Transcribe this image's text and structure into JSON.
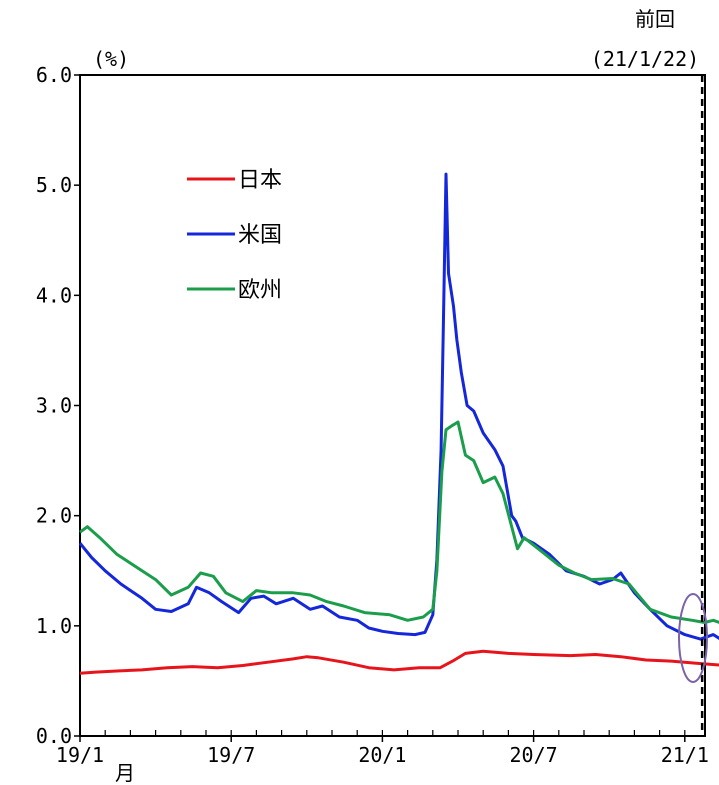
{
  "chart_data": {
    "type": "line",
    "yunit": "(%)",
    "ylim": [
      0,
      6
    ],
    "yticks": [
      "0.0",
      "1.0",
      "2.0",
      "3.0",
      "4.0",
      "5.0",
      "6.0"
    ],
    "xlim": [
      "2019-01",
      "2021-02"
    ],
    "xticks": [
      {
        "label": "19/1",
        "pos": "2019-01"
      },
      {
        "label": "19/7",
        "pos": "2019-07"
      },
      {
        "label": "20/1",
        "pos": "2020-01"
      },
      {
        "label": "20/7",
        "pos": "2020-07"
      },
      {
        "label": "21/1",
        "pos": "2021-01"
      }
    ],
    "xunit": "月",
    "marker": {
      "label_line1": "前回",
      "label_line2": "(21/1/22)",
      "date": "2021-01-22"
    },
    "grid": false,
    "legend_position": "top-left",
    "series": [
      {
        "name": "日本",
        "color": "#e8141b",
        "points": [
          [
            "2019-01-01",
            0.57
          ],
          [
            "2019-01-20",
            0.58
          ],
          [
            "2019-02-15",
            0.59
          ],
          [
            "2019-03-15",
            0.6
          ],
          [
            "2019-04-15",
            0.62
          ],
          [
            "2019-05-15",
            0.63
          ],
          [
            "2019-06-15",
            0.62
          ],
          [
            "2019-07-15",
            0.64
          ],
          [
            "2019-08-15",
            0.67
          ],
          [
            "2019-09-15",
            0.7
          ],
          [
            "2019-10-01",
            0.72
          ],
          [
            "2019-10-15",
            0.71
          ],
          [
            "2019-11-15",
            0.67
          ],
          [
            "2019-12-15",
            0.62
          ],
          [
            "2020-01-15",
            0.6
          ],
          [
            "2020-02-15",
            0.62
          ],
          [
            "2020-03-10",
            0.62
          ],
          [
            "2020-03-25",
            0.68
          ],
          [
            "2020-04-10",
            0.75
          ],
          [
            "2020-05-01",
            0.77
          ],
          [
            "2020-06-01",
            0.75
          ],
          [
            "2020-07-01",
            0.74
          ],
          [
            "2020-08-15",
            0.73
          ],
          [
            "2020-09-15",
            0.74
          ],
          [
            "2020-10-15",
            0.72
          ],
          [
            "2020-11-15",
            0.69
          ],
          [
            "2020-12-15",
            0.68
          ],
          [
            "2021-01-15",
            0.66
          ],
          [
            "2021-02-20",
            0.64
          ]
        ]
      },
      {
        "name": "米国",
        "color": "#1427d9",
        "points": [
          [
            "2019-01-01",
            1.75
          ],
          [
            "2019-01-15",
            1.62
          ],
          [
            "2019-02-01",
            1.5
          ],
          [
            "2019-02-20",
            1.38
          ],
          [
            "2019-03-15",
            1.25
          ],
          [
            "2019-04-01",
            1.15
          ],
          [
            "2019-04-20",
            1.13
          ],
          [
            "2019-05-10",
            1.2
          ],
          [
            "2019-05-20",
            1.35
          ],
          [
            "2019-06-05",
            1.3
          ],
          [
            "2019-06-20",
            1.22
          ],
          [
            "2019-07-10",
            1.12
          ],
          [
            "2019-07-25",
            1.25
          ],
          [
            "2019-08-10",
            1.27
          ],
          [
            "2019-08-25",
            1.2
          ],
          [
            "2019-09-15",
            1.25
          ],
          [
            "2019-10-05",
            1.15
          ],
          [
            "2019-10-20",
            1.18
          ],
          [
            "2019-11-10",
            1.08
          ],
          [
            "2019-12-01",
            1.05
          ],
          [
            "2019-12-15",
            0.98
          ],
          [
            "2020-01-01",
            0.95
          ],
          [
            "2020-01-20",
            0.93
          ],
          [
            "2020-02-10",
            0.92
          ],
          [
            "2020-02-22",
            0.94
          ],
          [
            "2020-03-01",
            1.1
          ],
          [
            "2020-03-06",
            1.6
          ],
          [
            "2020-03-11",
            2.6
          ],
          [
            "2020-03-14",
            3.8
          ],
          [
            "2020-03-17",
            5.1
          ],
          [
            "2020-03-20",
            4.2
          ],
          [
            "2020-03-26",
            3.9
          ],
          [
            "2020-03-30",
            3.6
          ],
          [
            "2020-04-05",
            3.3
          ],
          [
            "2020-04-12",
            3.0
          ],
          [
            "2020-04-20",
            2.95
          ],
          [
            "2020-05-01",
            2.75
          ],
          [
            "2020-05-15",
            2.6
          ],
          [
            "2020-05-25",
            2.45
          ],
          [
            "2020-06-05",
            2.0
          ],
          [
            "2020-06-10",
            1.95
          ],
          [
            "2020-06-18",
            1.8
          ],
          [
            "2020-07-01",
            1.75
          ],
          [
            "2020-07-20",
            1.65
          ],
          [
            "2020-08-10",
            1.5
          ],
          [
            "2020-09-01",
            1.45
          ],
          [
            "2020-09-20",
            1.38
          ],
          [
            "2020-10-05",
            1.42
          ],
          [
            "2020-10-15",
            1.48
          ],
          [
            "2020-11-01",
            1.3
          ],
          [
            "2020-11-20",
            1.15
          ],
          [
            "2020-12-10",
            1.0
          ],
          [
            "2021-01-01",
            0.92
          ],
          [
            "2021-01-20",
            0.88
          ],
          [
            "2021-02-05",
            0.92
          ],
          [
            "2021-02-20",
            0.85
          ]
        ]
      },
      {
        "name": "欧州",
        "color": "#1b9e4b",
        "points": [
          [
            "2019-01-01",
            1.85
          ],
          [
            "2019-01-10",
            1.9
          ],
          [
            "2019-01-25",
            1.8
          ],
          [
            "2019-02-15",
            1.65
          ],
          [
            "2019-03-15",
            1.5
          ],
          [
            "2019-04-01",
            1.42
          ],
          [
            "2019-04-20",
            1.28
          ],
          [
            "2019-05-10",
            1.35
          ],
          [
            "2019-05-25",
            1.48
          ],
          [
            "2019-06-10",
            1.45
          ],
          [
            "2019-06-25",
            1.3
          ],
          [
            "2019-07-15",
            1.22
          ],
          [
            "2019-08-01",
            1.32
          ],
          [
            "2019-08-20",
            1.3
          ],
          [
            "2019-09-15",
            1.3
          ],
          [
            "2019-10-05",
            1.28
          ],
          [
            "2019-10-25",
            1.22
          ],
          [
            "2019-11-15",
            1.18
          ],
          [
            "2019-12-10",
            1.12
          ],
          [
            "2020-01-10",
            1.1
          ],
          [
            "2020-02-01",
            1.05
          ],
          [
            "2020-02-20",
            1.08
          ],
          [
            "2020-03-01",
            1.15
          ],
          [
            "2020-03-06",
            1.5
          ],
          [
            "2020-03-12",
            2.4
          ],
          [
            "2020-03-17",
            2.78
          ],
          [
            "2020-03-25",
            2.82
          ],
          [
            "2020-04-01",
            2.85
          ],
          [
            "2020-04-10",
            2.55
          ],
          [
            "2020-04-20",
            2.5
          ],
          [
            "2020-05-01",
            2.3
          ],
          [
            "2020-05-15",
            2.35
          ],
          [
            "2020-05-25",
            2.2
          ],
          [
            "2020-06-05",
            1.9
          ],
          [
            "2020-06-12",
            1.7
          ],
          [
            "2020-06-20",
            1.8
          ],
          [
            "2020-07-10",
            1.68
          ],
          [
            "2020-08-01",
            1.55
          ],
          [
            "2020-08-20",
            1.48
          ],
          [
            "2020-09-10",
            1.42
          ],
          [
            "2020-10-05",
            1.43
          ],
          [
            "2020-10-25",
            1.38
          ],
          [
            "2020-11-20",
            1.15
          ],
          [
            "2020-12-15",
            1.08
          ],
          [
            "2021-01-10",
            1.05
          ],
          [
            "2021-01-25",
            1.03
          ],
          [
            "2021-02-05",
            1.05
          ],
          [
            "2021-02-20",
            1.01
          ]
        ]
      }
    ]
  }
}
